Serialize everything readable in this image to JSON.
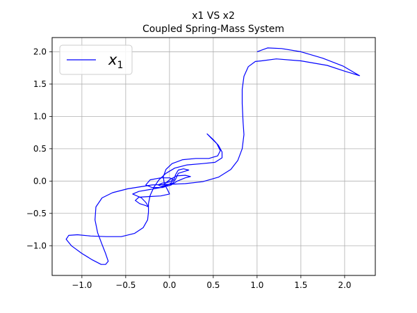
{
  "chart_data": {
    "type": "line",
    "title": "x1 VS x2",
    "subtitle": "Coupled Spring-Mass System",
    "xlabel": "",
    "ylabel": "",
    "xlim": [
      -1.34,
      2.35
    ],
    "ylim": [
      -1.46,
      2.22
    ],
    "xticks": [
      -1.0,
      -0.5,
      0.0,
      0.5,
      1.0,
      1.5,
      2.0
    ],
    "xtick_labels": [
      "−1.0",
      "−0.5",
      "0.0",
      "0.5",
      "1.0",
      "1.5",
      "2.0"
    ],
    "yticks": [
      -1.0,
      -0.5,
      0.0,
      0.5,
      1.0,
      1.5,
      2.0
    ],
    "ytick_labels": [
      "−1.0",
      "−0.5",
      "0.0",
      "0.5",
      "1.0",
      "1.5",
      "2.0"
    ],
    "grid": true,
    "legend": {
      "position": "top-left",
      "entries": [
        {
          "main": "x",
          "sub": "1"
        }
      ]
    },
    "series": [
      {
        "name": "x1",
        "color": "#0000ff",
        "points": [
          [
            1.0,
            2.0
          ],
          [
            1.12,
            2.06
          ],
          [
            1.28,
            2.05
          ],
          [
            1.5,
            2.0
          ],
          [
            1.75,
            1.9
          ],
          [
            1.98,
            1.78
          ],
          [
            2.17,
            1.63
          ],
          [
            2.0,
            1.7
          ],
          [
            1.8,
            1.79
          ],
          [
            1.5,
            1.86
          ],
          [
            1.22,
            1.89
          ],
          [
            1.05,
            1.86
          ],
          [
            0.98,
            1.85
          ],
          [
            0.9,
            1.77
          ],
          [
            0.85,
            1.62
          ],
          [
            0.83,
            1.42
          ],
          [
            0.83,
            1.2
          ],
          [
            0.84,
            0.92
          ],
          [
            0.85,
            0.72
          ],
          [
            0.83,
            0.5
          ],
          [
            0.78,
            0.32
          ],
          [
            0.7,
            0.18
          ],
          [
            0.56,
            0.06
          ],
          [
            0.38,
            -0.01
          ],
          [
            0.18,
            -0.04
          ],
          [
            0.0,
            -0.05
          ],
          [
            -0.2,
            -0.06
          ],
          [
            -0.48,
            -0.12
          ],
          [
            -0.65,
            -0.18
          ],
          [
            -0.77,
            -0.26
          ],
          [
            -0.84,
            -0.4
          ],
          [
            -0.85,
            -0.6
          ],
          [
            -0.82,
            -0.8
          ],
          [
            -0.77,
            -0.98
          ],
          [
            -0.73,
            -1.12
          ],
          [
            -0.7,
            -1.24
          ],
          [
            -0.73,
            -1.29
          ],
          [
            -0.78,
            -1.29
          ],
          [
            -0.88,
            -1.22
          ],
          [
            -1.0,
            -1.12
          ],
          [
            -1.12,
            -1.0
          ],
          [
            -1.18,
            -0.9
          ],
          [
            -1.15,
            -0.84
          ],
          [
            -1.05,
            -0.83
          ],
          [
            -0.9,
            -0.85
          ],
          [
            -0.72,
            -0.86
          ],
          [
            -0.55,
            -0.86
          ],
          [
            -0.4,
            -0.81
          ],
          [
            -0.3,
            -0.72
          ],
          [
            -0.25,
            -0.6
          ],
          [
            -0.24,
            -0.48
          ],
          [
            -0.24,
            -0.35
          ],
          [
            -0.22,
            -0.22
          ],
          [
            -0.18,
            -0.1
          ],
          [
            -0.12,
            0.02
          ],
          [
            -0.04,
            0.12
          ],
          [
            0.06,
            0.2
          ],
          [
            0.2,
            0.25
          ],
          [
            0.38,
            0.27
          ],
          [
            0.52,
            0.29
          ],
          [
            0.6,
            0.36
          ],
          [
            0.6,
            0.45
          ],
          [
            0.56,
            0.55
          ],
          [
            0.5,
            0.64
          ],
          [
            0.43,
            0.73
          ],
          [
            0.48,
            0.66
          ],
          [
            0.54,
            0.58
          ],
          [
            0.58,
            0.47
          ],
          [
            0.55,
            0.39
          ],
          [
            0.45,
            0.35
          ],
          [
            0.3,
            0.35
          ],
          [
            0.15,
            0.33
          ],
          [
            0.03,
            0.27
          ],
          [
            -0.04,
            0.18
          ],
          [
            -0.07,
            0.07
          ],
          [
            -0.06,
            -0.04
          ],
          [
            -0.02,
            -0.14
          ],
          [
            0.0,
            -0.2
          ],
          [
            -0.1,
            -0.23
          ],
          [
            -0.24,
            -0.24
          ],
          [
            -0.35,
            -0.25
          ],
          [
            -0.39,
            -0.3
          ],
          [
            -0.34,
            -0.35
          ],
          [
            -0.27,
            -0.38
          ],
          [
            -0.24,
            -0.4
          ],
          [
            -0.27,
            -0.33
          ],
          [
            -0.32,
            -0.26
          ],
          [
            -0.42,
            -0.2
          ],
          [
            -0.35,
            -0.16
          ],
          [
            -0.22,
            -0.13
          ],
          [
            -0.1,
            -0.1
          ],
          [
            0.0,
            -0.05
          ],
          [
            0.05,
            0.02
          ],
          [
            0.07,
            0.1
          ],
          [
            0.1,
            0.17
          ],
          [
            0.16,
            0.19
          ],
          [
            0.22,
            0.17
          ],
          [
            0.17,
            0.15
          ],
          [
            0.1,
            0.12
          ],
          [
            0.07,
            0.03
          ],
          [
            0.04,
            -0.03
          ],
          [
            -0.02,
            -0.06
          ],
          [
            -0.1,
            -0.08
          ],
          [
            -0.13,
            -0.06
          ],
          [
            -0.08,
            -0.03
          ],
          [
            -0.02,
            -0.02
          ],
          [
            0.02,
            0.0
          ],
          [
            0.04,
            0.03
          ],
          [
            0.0,
            0.05
          ],
          [
            -0.1,
            0.05
          ],
          [
            -0.22,
            0.02
          ],
          [
            -0.27,
            -0.06
          ],
          [
            -0.2,
            -0.1
          ],
          [
            -0.08,
            -0.1
          ],
          [
            0.02,
            -0.06
          ],
          [
            0.09,
            0.0
          ],
          [
            0.18,
            0.05
          ],
          [
            0.24,
            0.07
          ],
          [
            0.18,
            0.09
          ],
          [
            0.08,
            0.08
          ],
          [
            0.0,
            0.02
          ],
          [
            -0.05,
            -0.04
          ]
        ]
      }
    ]
  }
}
